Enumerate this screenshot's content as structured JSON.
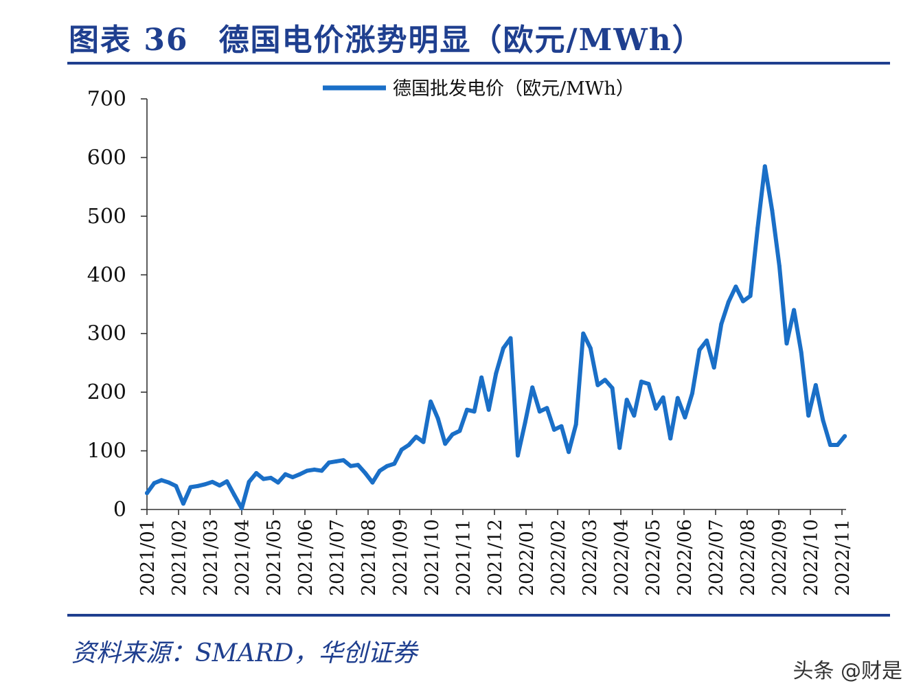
{
  "figure": {
    "title_number": "图表 36",
    "title_text": "德国电价涨势明显（欧元/MWh）",
    "source": "资料来源：SMARD，华创证券",
    "watermark": "头条 @财是"
  },
  "colors": {
    "accent": "#1f3f8f",
    "line": "#1a6fc7"
  },
  "chart_data": {
    "type": "line",
    "title": "",
    "xlabel": "",
    "ylabel": "",
    "ylim": [
      0,
      700
    ],
    "yticks": [
      0,
      100,
      200,
      300,
      400,
      500,
      600,
      700
    ],
    "legend": "top-center",
    "grid": false,
    "xticks": [
      "2021/01",
      "2021/02",
      "2021/03",
      "2021/04",
      "2021/05",
      "2021/06",
      "2021/07",
      "2021/08",
      "2021/09",
      "2021/10",
      "2021/11",
      "2021/12",
      "2022/01",
      "2022/02",
      "2022/03",
      "2022/04",
      "2022/05",
      "2022/06",
      "2022/07",
      "2022/08",
      "2022/09",
      "2022/10",
      "2022/11"
    ],
    "series": [
      {
        "name": "德国批发电价（欧元/MWh）",
        "color": "#1a6fc7",
        "x_months": [
          0,
          0.23,
          0.46,
          0.69,
          0.92,
          1.15,
          1.38,
          1.61,
          1.84,
          2.07,
          2.3,
          2.53,
          2.76,
          3.0,
          3.23,
          3.46,
          3.69,
          3.92,
          4.15,
          4.38,
          4.61,
          4.84,
          5.07,
          5.3,
          5.53,
          5.76,
          5.99,
          6.22,
          6.45,
          6.68,
          6.91,
          7.14,
          7.37,
          7.6,
          7.83,
          8.06,
          8.29,
          8.52,
          8.75,
          8.98,
          9.21,
          9.44,
          9.67,
          9.9,
          10.13,
          10.36,
          10.59,
          10.82,
          11.05,
          11.28,
          11.51,
          11.74,
          11.97,
          12.2,
          12.43,
          12.66,
          12.89,
          13.12,
          13.35,
          13.58,
          13.81,
          14.04,
          14.27,
          14.5,
          14.73,
          14.96,
          15.19,
          15.42,
          15.65,
          15.88,
          16.11,
          16.34,
          16.57,
          16.8,
          17.03,
          17.26,
          17.49,
          17.72,
          17.95,
          18.18,
          18.41,
          18.64,
          18.87,
          19.1,
          19.33,
          19.56,
          19.79,
          20.02,
          20.25,
          20.48,
          20.71,
          20.94,
          21.17,
          21.4,
          21.63,
          21.86,
          22.09
        ],
        "values": [
          28,
          45,
          50,
          46,
          40,
          10,
          38,
          40,
          43,
          47,
          41,
          48,
          25,
          2,
          47,
          62,
          52,
          54,
          46,
          60,
          55,
          60,
          66,
          68,
          66,
          80,
          82,
          84,
          74,
          76,
          62,
          46,
          66,
          74,
          78,
          102,
          110,
          124,
          115,
          184,
          155,
          112,
          128,
          134,
          170,
          167,
          225,
          170,
          232,
          275,
          292,
          92,
          148,
          208,
          167,
          173,
          136,
          142,
          98,
          145,
          300,
          275,
          212,
          221,
          207,
          105,
          187,
          160,
          218,
          214,
          172,
          191,
          121,
          190,
          157,
          198,
          272,
          288,
          242,
          316,
          354,
          380,
          355,
          364,
          480,
          585,
          510,
          415,
          283,
          340,
          268,
          160,
          212,
          152,
          110,
          110,
          125
        ]
      }
    ]
  }
}
